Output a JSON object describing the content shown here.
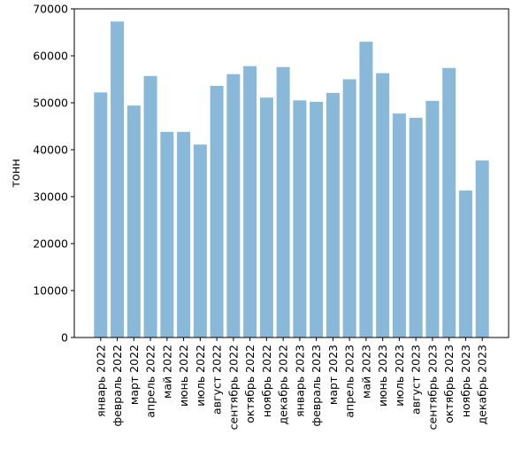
{
  "chart_data": {
    "type": "bar",
    "ylabel": "тонн",
    "xlabel": "",
    "title": "",
    "ylim": [
      0,
      70000
    ],
    "yticks": [
      0,
      10000,
      20000,
      30000,
      40000,
      50000,
      60000,
      70000
    ],
    "bar_color": "#8ab8d9",
    "grid": false,
    "categories": [
      "январь 2022",
      "февраль 2022",
      "март 2022",
      "апрель 2022",
      "май 2022",
      "июнь 2022",
      "июль 2022",
      "август 2022",
      "сентябрь 2022",
      "октябрь 2022",
      "ноябрь 2022",
      "декабрь 2022",
      "январь 2023",
      "февраль 2023",
      "март 2023",
      "апрель 2023",
      "май 2023",
      "июнь 2023",
      "июль 2023",
      "август 2023",
      "сентябрь 2023",
      "октябрь 2023",
      "ноябрь 2023",
      "декабрь 2023"
    ],
    "values": [
      52200,
      67300,
      49400,
      55700,
      43800,
      43800,
      41100,
      53600,
      56100,
      57800,
      51100,
      57600,
      50500,
      50200,
      52100,
      55000,
      63000,
      56300,
      47700,
      46800,
      50400,
      57400,
      31300,
      37700
    ]
  }
}
